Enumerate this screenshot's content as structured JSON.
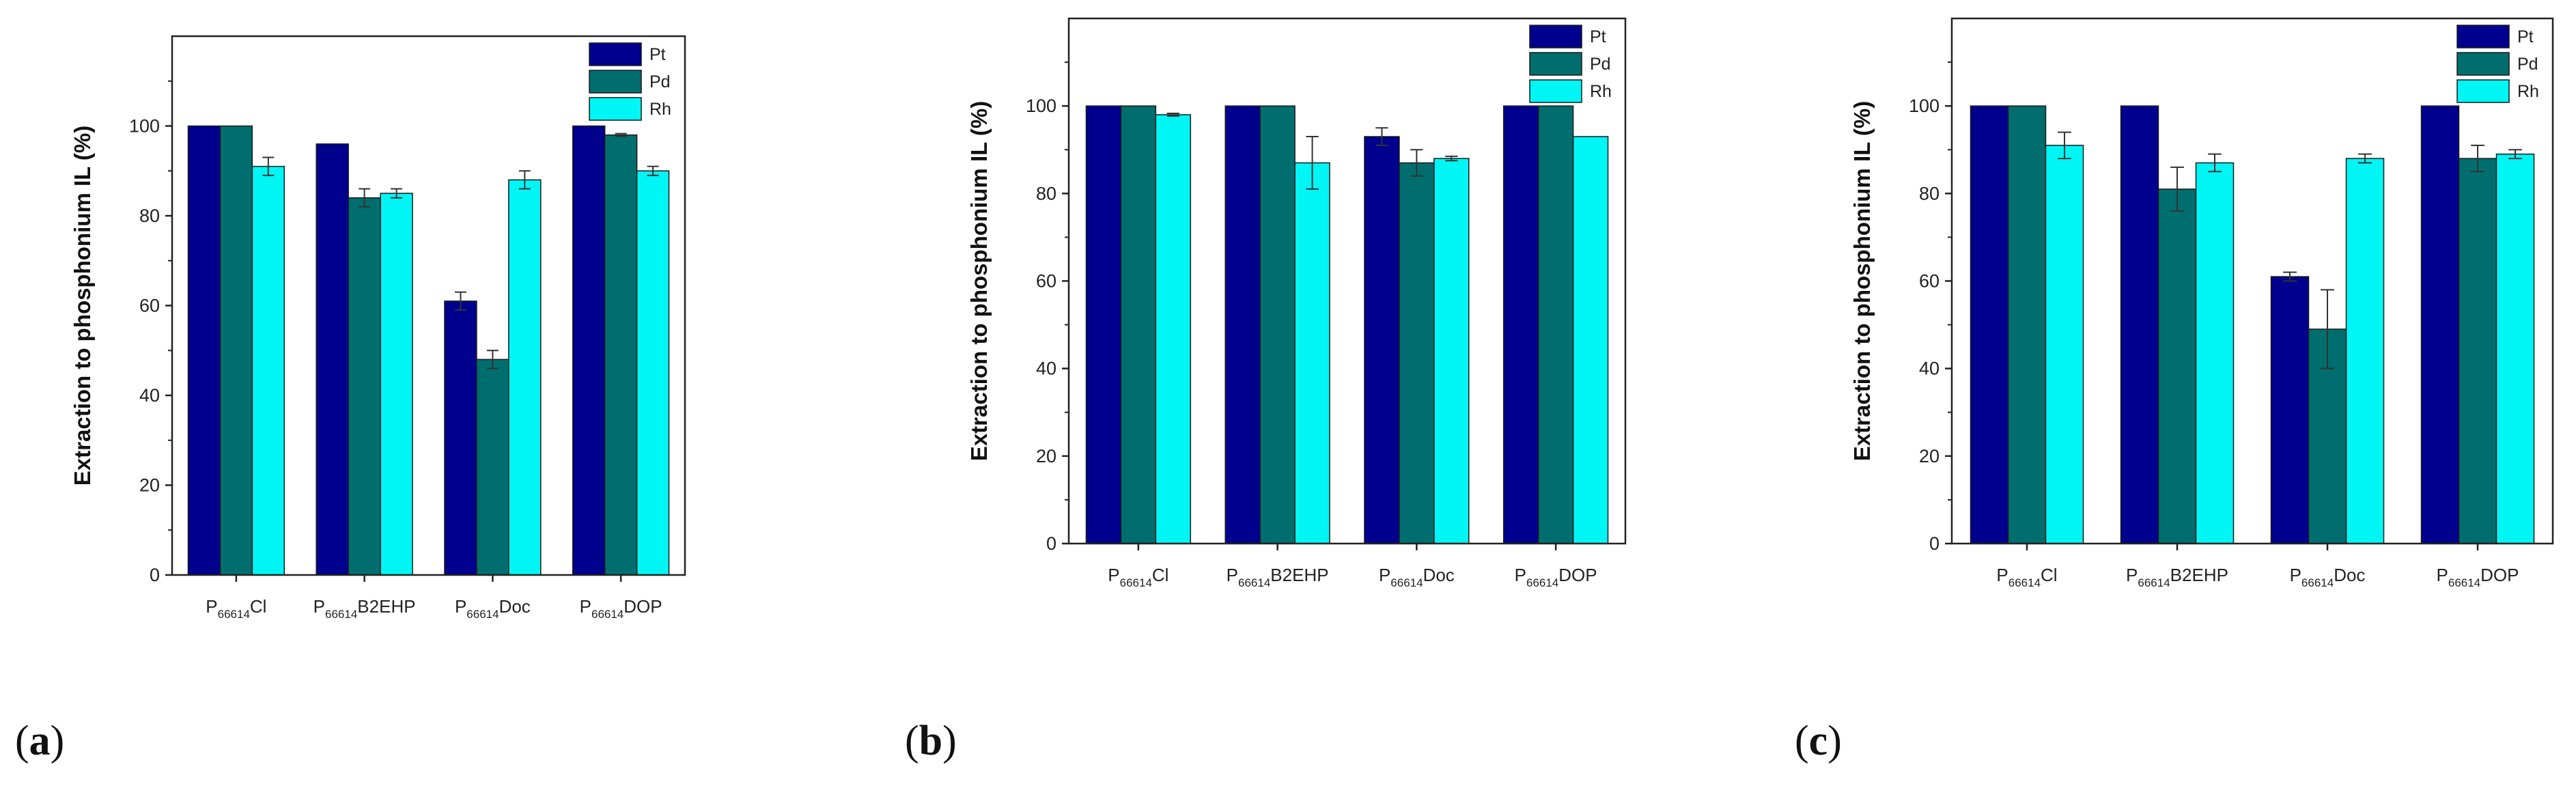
{
  "colors": {
    "Pt": "#00008f",
    "Pd": "#006e6e",
    "Rh": "#00f5f5"
  },
  "chart_data": [
    {
      "type": "bar",
      "panel_label": "a",
      "ylabel": "Extraction to phosphonium IL (%)",
      "xlabel": "",
      "ylim": [
        0,
        120
      ],
      "yticks": [
        0,
        20,
        40,
        60,
        80,
        100
      ],
      "grid": false,
      "legend_position": "top-right",
      "categories": [
        {
          "base": "P",
          "sub": "66614",
          "suffix": "Cl"
        },
        {
          "base": "P",
          "sub": "66614",
          "suffix": "B2EHP"
        },
        {
          "base": "P",
          "sub": "66614",
          "suffix": "Doc"
        },
        {
          "base": "P",
          "sub": "66614",
          "suffix": "DOP"
        }
      ],
      "series": [
        {
          "name": "Pt",
          "values": [
            100,
            96,
            61,
            100
          ],
          "errors": [
            0,
            0,
            2,
            0
          ]
        },
        {
          "name": "Pd",
          "values": [
            100,
            84,
            48,
            98
          ],
          "errors": [
            0,
            2,
            2,
            0.3
          ]
        },
        {
          "name": "Rh",
          "values": [
            91,
            85,
            88,
            90
          ],
          "errors": [
            2,
            1,
            2,
            1
          ]
        }
      ]
    },
    {
      "type": "bar",
      "panel_label": "b",
      "ylabel": "Extraction to phosphonium IL (%)",
      "xlabel": "",
      "ylim": [
        0,
        120
      ],
      "yticks": [
        0,
        20,
        40,
        60,
        80,
        100
      ],
      "grid": false,
      "legend_position": "top-right",
      "categories": [
        {
          "base": "P",
          "sub": "66614",
          "suffix": "Cl"
        },
        {
          "base": "P",
          "sub": "66614",
          "suffix": "B2EHP"
        },
        {
          "base": "P",
          "sub": "66614",
          "suffix": "Doc"
        },
        {
          "base": "P",
          "sub": "66614",
          "suffix": "DOP"
        }
      ],
      "series": [
        {
          "name": "Pt",
          "values": [
            100,
            100,
            93,
            100
          ],
          "errors": [
            0,
            0,
            2,
            0
          ]
        },
        {
          "name": "Pd",
          "values": [
            100,
            100,
            87,
            100
          ],
          "errors": [
            0,
            0,
            3,
            0
          ]
        },
        {
          "name": "Rh",
          "values": [
            98,
            87,
            88,
            93
          ],
          "errors": [
            0.3,
            6,
            0.5,
            0
          ]
        }
      ]
    },
    {
      "type": "bar",
      "panel_label": "c",
      "ylabel": "Extraction to phosphonium IL (%)",
      "xlabel": "",
      "ylim": [
        0,
        120
      ],
      "yticks": [
        0,
        20,
        40,
        60,
        80,
        100
      ],
      "grid": false,
      "legend_position": "top-right",
      "categories": [
        {
          "base": "P",
          "sub": "66614",
          "suffix": "Cl"
        },
        {
          "base": "P",
          "sub": "66614",
          "suffix": "B2EHP"
        },
        {
          "base": "P",
          "sub": "66614",
          "suffix": "Doc"
        },
        {
          "base": "P",
          "sub": "66614",
          "suffix": "DOP"
        }
      ],
      "series": [
        {
          "name": "Pt",
          "values": [
            100,
            100,
            61,
            100
          ],
          "errors": [
            0,
            0,
            1,
            0
          ]
        },
        {
          "name": "Pd",
          "values": [
            100,
            81,
            49,
            88
          ],
          "errors": [
            0,
            5,
            9,
            3
          ]
        },
        {
          "name": "Rh",
          "values": [
            91,
            87,
            88,
            89
          ],
          "errors": [
            3,
            2,
            1,
            1
          ]
        }
      ]
    }
  ]
}
